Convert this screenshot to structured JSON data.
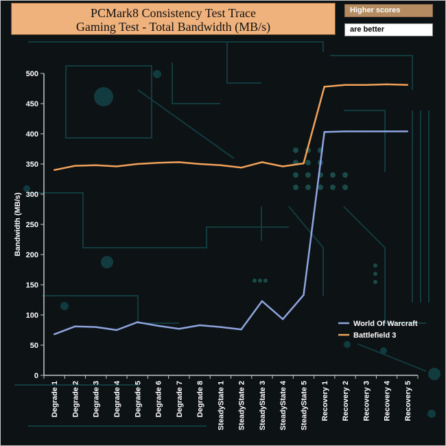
{
  "header": {
    "title_line1": "PCMark8 Consistency Test Trace",
    "title_line2": "Gaming Test - Total Bandwidth (MB/s)",
    "note_line1": "Higher scores",
    "note_line2": "are better"
  },
  "chart_data": {
    "type": "line",
    "title": "PCMark8 Consistency Test Trace Gaming Test - Total Bandwidth (MB/s)",
    "ylabel": "Bandwidth (MB/s)",
    "xlabel": "",
    "ylim": [
      0,
      500
    ],
    "yticks": [
      0,
      50,
      100,
      150,
      200,
      250,
      300,
      350,
      400,
      450,
      500
    ],
    "grid": false,
    "legend_position": "right",
    "categories": [
      "Degrade 1",
      "Degrade 2",
      "Degrade 3",
      "Degrade 4",
      "Degrade 5",
      "Degrade 6",
      "Degrade 7",
      "Degrade 8",
      "SteadyState 1",
      "SteadyState 2",
      "SteadyState 3",
      "SteadyState 4",
      "SteadyState 5",
      "Recovery 1",
      "Recovery 2",
      "Recovery 3",
      "Recovery 4",
      "Recovery 5"
    ],
    "series": [
      {
        "name": "World Of Warcraft",
        "color": "#8fa6e0",
        "values": [
          68,
          81,
          80,
          75,
          88,
          82,
          77,
          83,
          80,
          76,
          123,
          93,
          133,
          403,
          404,
          404,
          404,
          404
        ]
      },
      {
        "name": "Battlefield 3",
        "color": "#f3a45a",
        "values": [
          340,
          347,
          348,
          346,
          350,
          352,
          353,
          350,
          348,
          344,
          353,
          346,
          351,
          478,
          481,
          481,
          482,
          481
        ]
      }
    ]
  }
}
